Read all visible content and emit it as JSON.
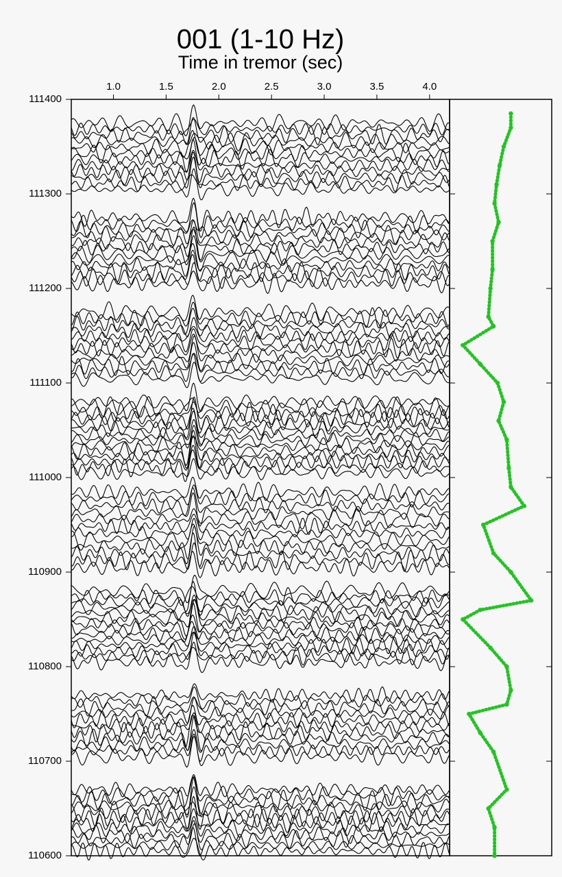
{
  "chart_data": {
    "type": "wiggle",
    "title": "001 (1-10 Hz)",
    "x_label": "Time in tremor (sec)",
    "xlim": [
      0.6,
      4.19
    ],
    "xticks": [
      {
        "value": 1.0,
        "label": "1.0"
      },
      {
        "value": 1.5,
        "label": "1.5"
      },
      {
        "value": 2.0,
        "label": "2.0"
      },
      {
        "value": 2.5,
        "label": "2.5"
      },
      {
        "value": 3.0,
        "label": "3.0"
      },
      {
        "value": 3.5,
        "label": "3.5"
      },
      {
        "value": 4.0,
        "label": "4.0"
      }
    ],
    "ylim": [
      110600,
      111400
    ],
    "yticks": [
      110600,
      110700,
      110800,
      110900,
      111000,
      111100,
      111200,
      111300,
      111400
    ],
    "trace_color": "#000000",
    "groups": [
      {
        "top": 111375,
        "bottom": 111305,
        "count": 12
      },
      {
        "top": 111275,
        "bottom": 111205,
        "count": 12
      },
      {
        "top": 111175,
        "bottom": 111105,
        "count": 12
      },
      {
        "top": 111080,
        "bottom": 111005,
        "count": 14
      },
      {
        "top": 110985,
        "bottom": 110905,
        "count": 12
      },
      {
        "top": 110880,
        "bottom": 110805,
        "count": 14
      },
      {
        "top": 110770,
        "bottom": 110705,
        "count": 11
      },
      {
        "top": 110670,
        "bottom": 110605,
        "count": 12
      }
    ],
    "picks": {
      "color": "#22c322",
      "xlim": [
        0,
        1
      ],
      "y": [
        111385,
        111370,
        111350,
        111330,
        111310,
        111290,
        111270,
        111250,
        111220,
        111200,
        111170,
        111160,
        111140,
        111120,
        111100,
        111080,
        111060,
        111040,
        111010,
        110990,
        110970,
        110950,
        110920,
        110900,
        110870,
        110860,
        110850,
        110820,
        110800,
        110775,
        110760,
        110750,
        110730,
        110710,
        110670,
        110650,
        110630,
        110600
      ],
      "values": [
        0.6,
        0.6,
        0.53,
        0.49,
        0.46,
        0.44,
        0.48,
        0.42,
        0.42,
        0.4,
        0.38,
        0.43,
        0.13,
        0.3,
        0.47,
        0.53,
        0.48,
        0.56,
        0.58,
        0.6,
        0.73,
        0.33,
        0.43,
        0.6,
        0.8,
        0.3,
        0.13,
        0.4,
        0.56,
        0.6,
        0.56,
        0.19,
        0.3,
        0.43,
        0.56,
        0.38,
        0.44,
        0.44
      ]
    }
  }
}
